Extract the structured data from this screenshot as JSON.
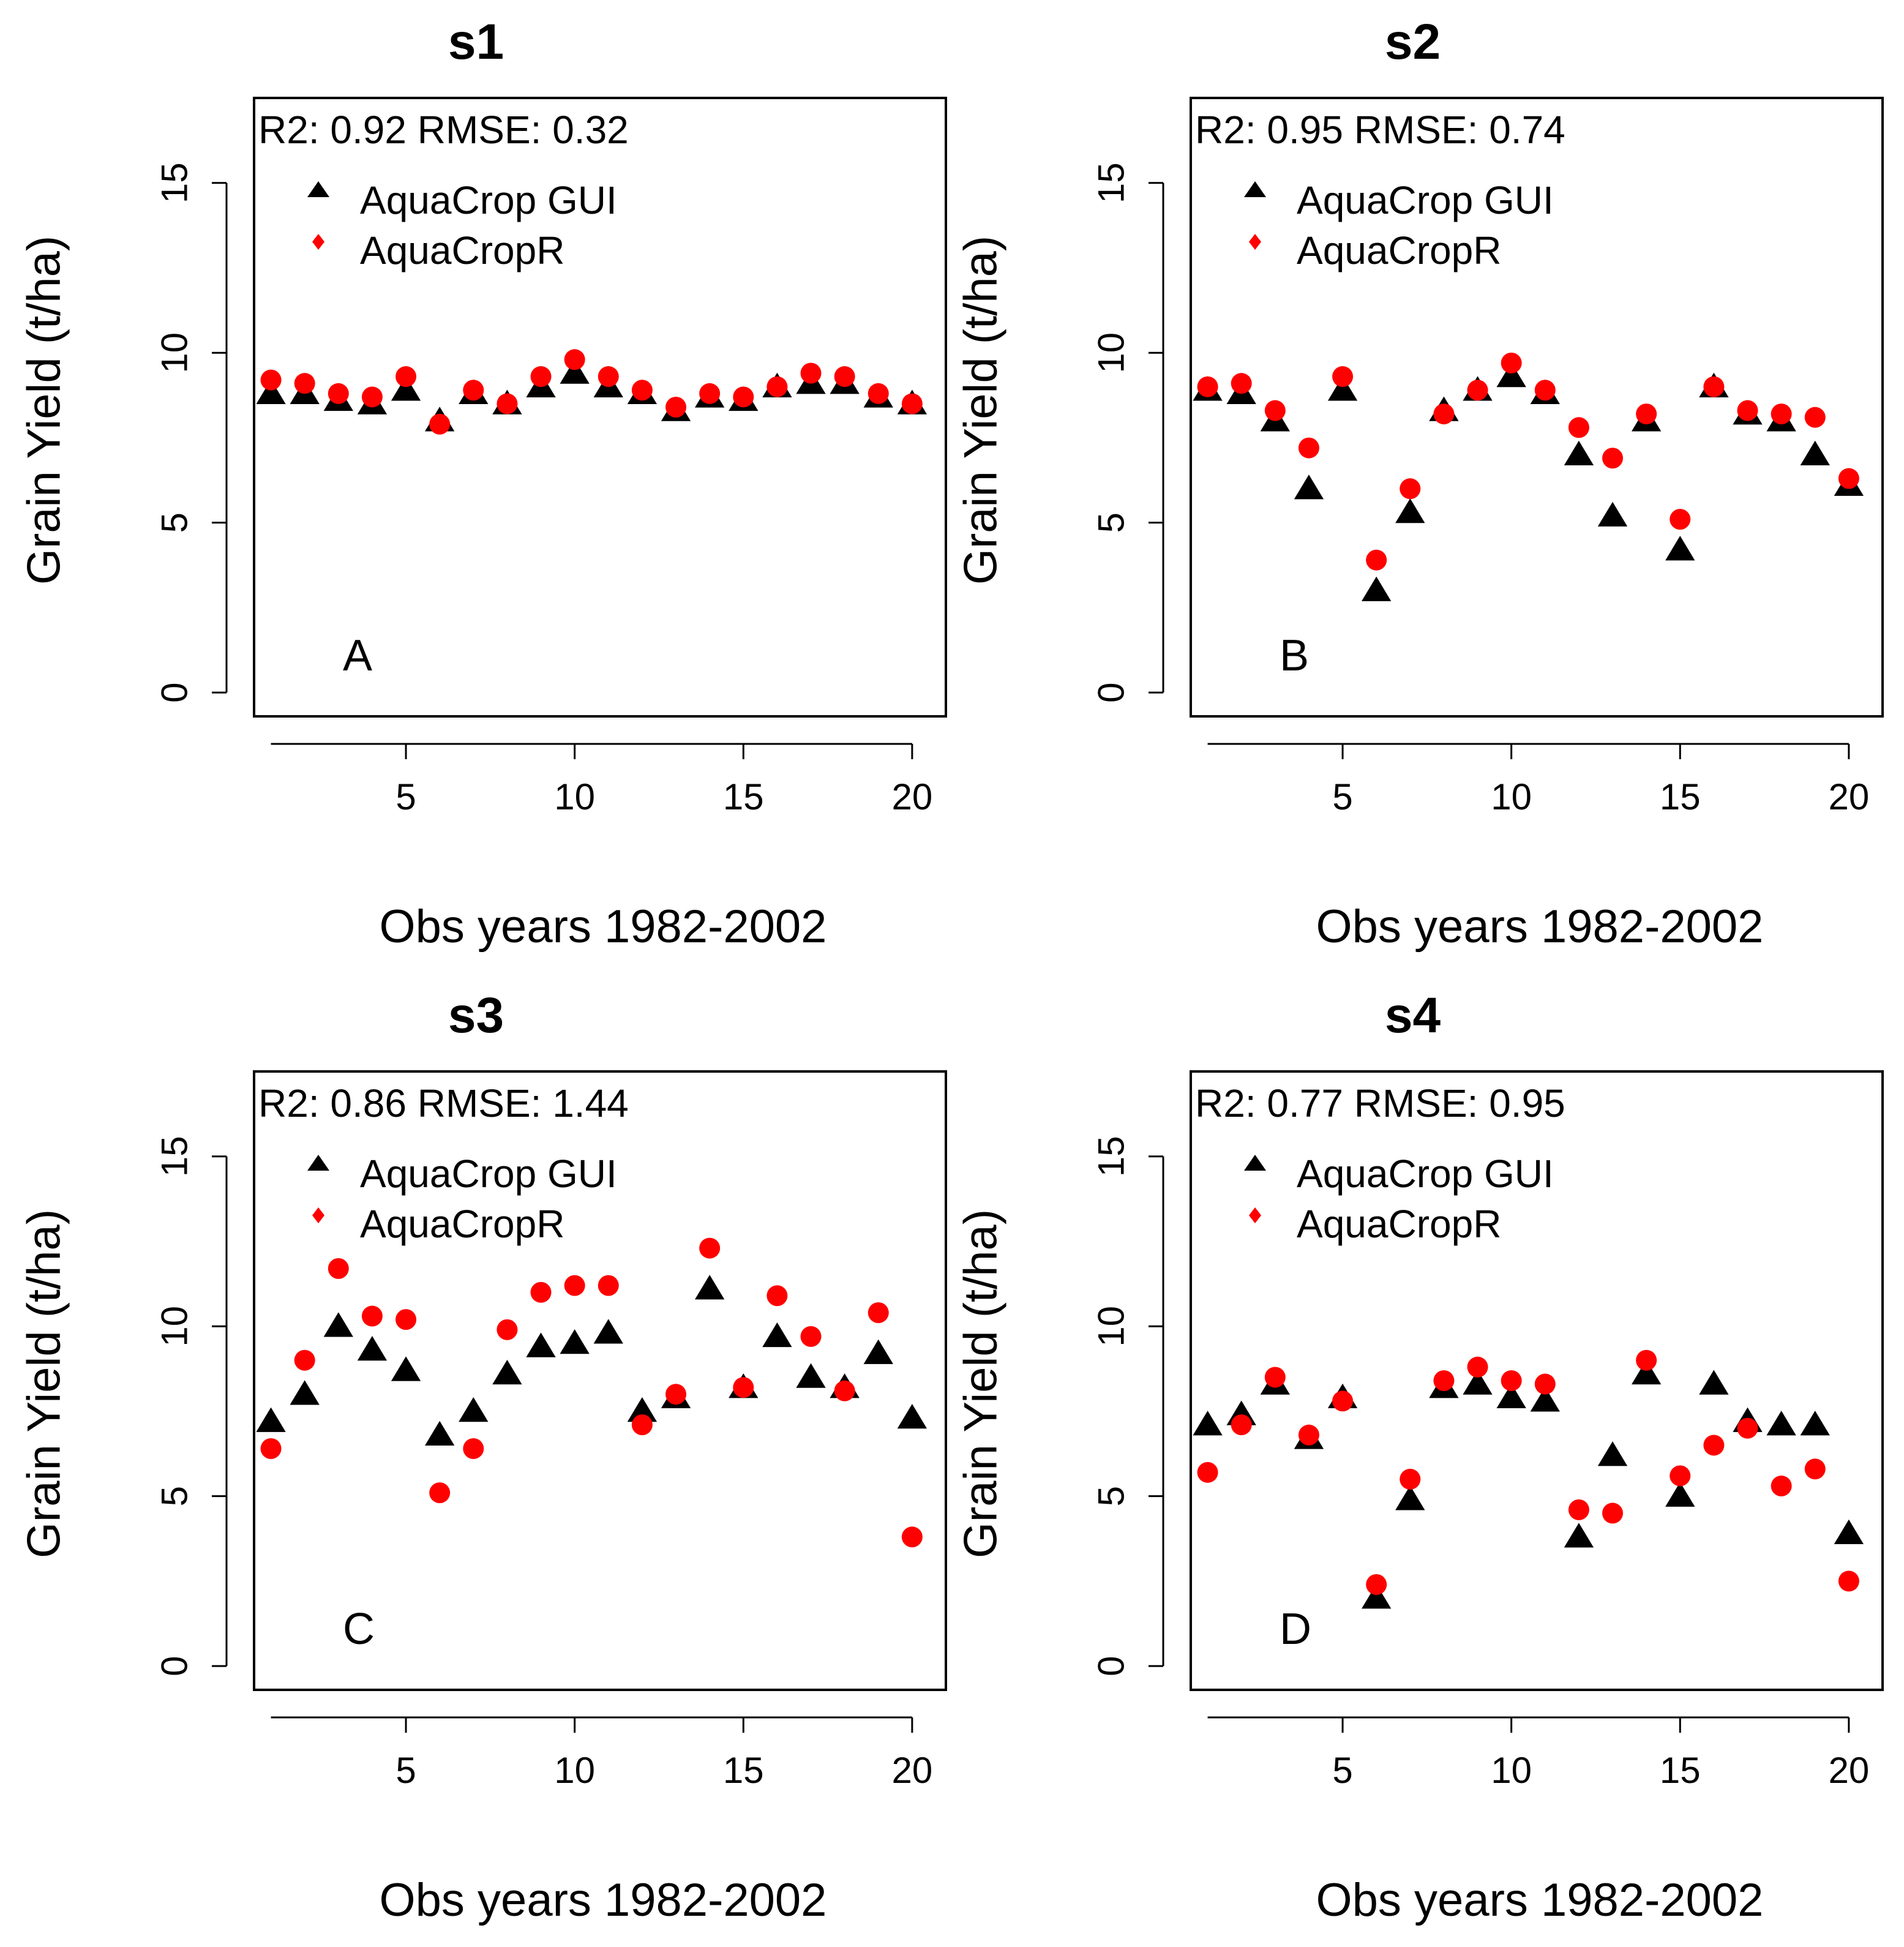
{
  "colors": {
    "gui": "#000000",
    "r": "#ff0000",
    "axis": "#000000",
    "background": "#ffffff"
  },
  "chart_data": [
    {
      "type": "scatter",
      "title": "s1",
      "panel_label": "A",
      "xlabel": "Obs years 1982-2002",
      "ylabel": "Grain Yield (t/ha)",
      "stats": "R2:  0.92 RMSE:  0.32",
      "xlim": [
        0.5,
        21
      ],
      "ylim": [
        -0.7,
        17.5
      ],
      "xticks": [
        5,
        10,
        15,
        20
      ],
      "yticks": [
        0,
        5,
        10,
        15
      ],
      "legend": {
        "position": "top-left",
        "entries": [
          "AquaCrop GUI",
          "AquaCropR"
        ]
      },
      "x": [
        1,
        2,
        3,
        4,
        5,
        6,
        7,
        8,
        9,
        10,
        11,
        12,
        13,
        14,
        15,
        16,
        17,
        18,
        19,
        20
      ],
      "series": [
        {
          "name": "AquaCrop GUI",
          "marker": "triangle",
          "color": "#000000",
          "values": [
            8.8,
            8.8,
            8.6,
            8.5,
            8.9,
            8.0,
            8.8,
            8.5,
            9.0,
            9.4,
            9.0,
            8.8,
            8.3,
            8.7,
            8.6,
            9.0,
            9.1,
            9.1,
            8.7,
            8.5
          ]
        },
        {
          "name": "AquaCropR",
          "marker": "circle",
          "color": "#ff0000",
          "values": [
            9.2,
            9.1,
            8.8,
            8.7,
            9.3,
            7.9,
            8.9,
            8.5,
            9.3,
            9.8,
            9.3,
            8.9,
            8.4,
            8.8,
            8.7,
            9.0,
            9.4,
            9.3,
            8.8,
            8.5
          ]
        }
      ]
    },
    {
      "type": "scatter",
      "title": "s2",
      "panel_label": "B",
      "xlabel": "Obs years 1982-2002",
      "ylabel": "Grain Yield (t/ha)",
      "stats": "R2:  0.95 RMSE:  0.74",
      "xlim": [
        0.5,
        21
      ],
      "ylim": [
        -0.7,
        17.5
      ],
      "xticks": [
        5,
        10,
        15,
        20
      ],
      "yticks": [
        0,
        5,
        10,
        15
      ],
      "legend": {
        "position": "top-left",
        "entries": [
          "AquaCrop GUI",
          "AquaCropR"
        ]
      },
      "x": [
        1,
        2,
        3,
        4,
        5,
        6,
        7,
        8,
        9,
        10,
        11,
        12,
        13,
        14,
        15,
        16,
        17,
        18,
        19,
        20
      ],
      "series": [
        {
          "name": "AquaCrop GUI",
          "marker": "triangle",
          "color": "#000000",
          "values": [
            8.9,
            8.8,
            8.0,
            6.0,
            8.9,
            3.0,
            5.3,
            8.3,
            8.9,
            9.3,
            8.8,
            7.0,
            5.2,
            8.0,
            4.2,
            9.0,
            8.2,
            8.0,
            7.0,
            6.1
          ]
        },
        {
          "name": "AquaCropR",
          "marker": "circle",
          "color": "#ff0000",
          "values": [
            9.0,
            9.1,
            8.3,
            7.2,
            9.3,
            3.9,
            6.0,
            8.2,
            8.9,
            9.7,
            8.9,
            7.8,
            6.9,
            8.2,
            5.1,
            9.0,
            8.3,
            8.2,
            8.1,
            6.3
          ]
        }
      ]
    },
    {
      "type": "scatter",
      "title": "s3",
      "panel_label": "C",
      "xlabel": "Obs years 1982-2002",
      "ylabel": "Grain Yield (t/ha)",
      "stats": "R2:  0.86 RMSE:  1.44",
      "xlim": [
        0.5,
        21
      ],
      "ylim": [
        -0.7,
        17.5
      ],
      "xticks": [
        5,
        10,
        15,
        20
      ],
      "yticks": [
        0,
        5,
        10,
        15
      ],
      "legend": {
        "position": "top-left",
        "entries": [
          "AquaCrop GUI",
          "AquaCropR"
        ]
      },
      "x": [
        1,
        2,
        3,
        4,
        5,
        6,
        7,
        8,
        9,
        10,
        11,
        12,
        13,
        14,
        15,
        16,
        17,
        18,
        19,
        20
      ],
      "series": [
        {
          "name": "AquaCrop GUI",
          "marker": "triangle",
          "color": "#000000",
          "values": [
            7.2,
            8.0,
            10.0,
            9.3,
            8.7,
            6.8,
            7.5,
            8.6,
            9.4,
            9.5,
            9.8,
            7.5,
            7.9,
            11.1,
            8.2,
            9.7,
            8.5,
            8.2,
            9.2,
            7.3
          ]
        },
        {
          "name": "AquaCropR",
          "marker": "circle",
          "color": "#ff0000",
          "values": [
            6.4,
            9.0,
            11.7,
            10.3,
            10.2,
            5.1,
            6.4,
            9.9,
            11.0,
            11.2,
            11.2,
            7.1,
            8.0,
            12.3,
            8.2,
            10.9,
            9.7,
            8.1,
            10.4,
            3.8
          ]
        }
      ]
    },
    {
      "type": "scatter",
      "title": "s4",
      "panel_label": "D",
      "xlabel": "Obs years 1982-2002",
      "ylabel": "Grain Yield (t/ha)",
      "stats": "R2:  0.77 RMSE:  0.95",
      "xlim": [
        0.5,
        21
      ],
      "ylim": [
        -0.7,
        17.5
      ],
      "xticks": [
        5,
        10,
        15,
        20
      ],
      "yticks": [
        0,
        5,
        10,
        15
      ],
      "legend": {
        "position": "top-left",
        "entries": [
          "AquaCrop GUI",
          "AquaCropR"
        ]
      },
      "x": [
        1,
        2,
        3,
        4,
        5,
        6,
        7,
        8,
        9,
        10,
        11,
        12,
        13,
        14,
        15,
        16,
        17,
        18,
        19,
        20
      ],
      "series": [
        {
          "name": "AquaCrop GUI",
          "marker": "triangle",
          "color": "#000000",
          "values": [
            7.1,
            7.4,
            8.3,
            6.7,
            7.9,
            2.0,
            4.9,
            8.2,
            8.3,
            7.9,
            7.8,
            3.8,
            6.2,
            8.6,
            5.0,
            8.3,
            7.2,
            7.1,
            7.1,
            3.9
          ]
        },
        {
          "name": "AquaCropR",
          "marker": "circle",
          "color": "#ff0000",
          "values": [
            5.7,
            7.1,
            8.5,
            6.8,
            7.8,
            2.4,
            5.5,
            8.4,
            8.8,
            8.4,
            8.3,
            4.6,
            4.5,
            9.0,
            5.6,
            6.5,
            7.0,
            5.3,
            5.8,
            2.5
          ]
        }
      ]
    }
  ]
}
